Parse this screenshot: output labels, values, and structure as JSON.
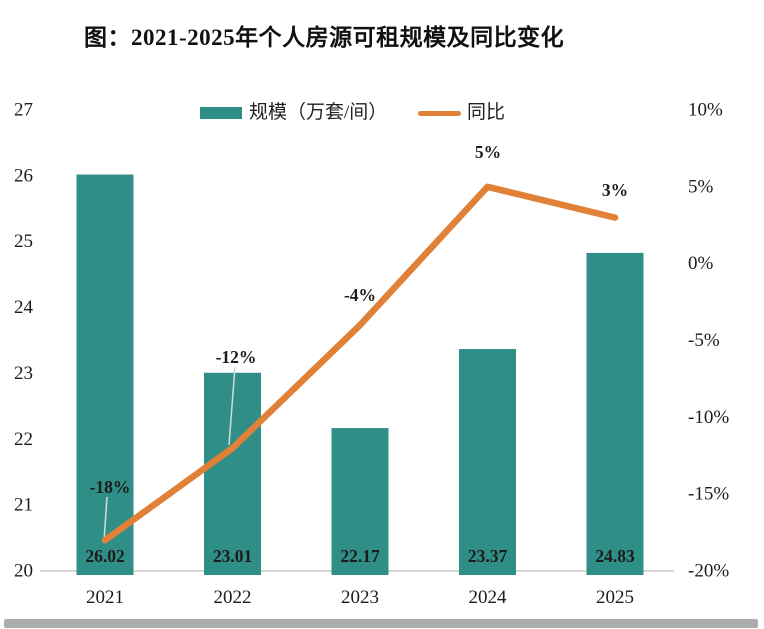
{
  "title": "图：2021-2025年个人房源可租规模及同比变化",
  "legend": {
    "items": [
      {
        "label": "规模（万套/间）",
        "color": "#2F8E85",
        "marker": "bar-swatch"
      },
      {
        "label": "同比",
        "color": "#E08137",
        "marker": "line-swatch"
      }
    ]
  },
  "chart_data": {
    "type": "combo-bar-line",
    "title": "图：2021-2025年个人房源可租规模及同比变化",
    "categories": [
      "2021",
      "2022",
      "2023",
      "2024",
      "2025"
    ],
    "series": [
      {
        "name": "规模（万套/间）",
        "type": "bar",
        "axis": "left",
        "color": "#2F8E85",
        "values": [
          26.02,
          23.01,
          22.17,
          23.37,
          24.83
        ],
        "data_labels": [
          "26.02",
          "23.01",
          "22.17",
          "23.37",
          "24.83"
        ]
      },
      {
        "name": "同比",
        "type": "line",
        "axis": "right",
        "color": "#E08137",
        "values": [
          -18,
          -12,
          -4,
          5,
          3
        ],
        "data_labels": [
          "-18%",
          "-12%",
          "-4%",
          "5%",
          "3%"
        ]
      }
    ],
    "left_axis": {
      "min": 20,
      "max": 27,
      "tick_labels": [
        "27",
        "26",
        "25",
        "24",
        "23",
        "22",
        "21",
        "20"
      ]
    },
    "right_axis": {
      "min": -20,
      "max": 10,
      "tick_labels": [
        "10%",
        "5%",
        "0%",
        "-5%",
        "-10%",
        "-15%",
        "-20%"
      ]
    },
    "x_axis": {
      "tick_labels": [
        "2021",
        "2022",
        "2023",
        "2024",
        "2025"
      ]
    },
    "legend_position": "top",
    "grid": "baseline-only",
    "colors": {
      "bar": "#2F8E85",
      "line": "#E08137",
      "axis_line": "#C9C9C9",
      "leader_line": "#D3DCDA",
      "text": "#1c1c1c"
    }
  }
}
